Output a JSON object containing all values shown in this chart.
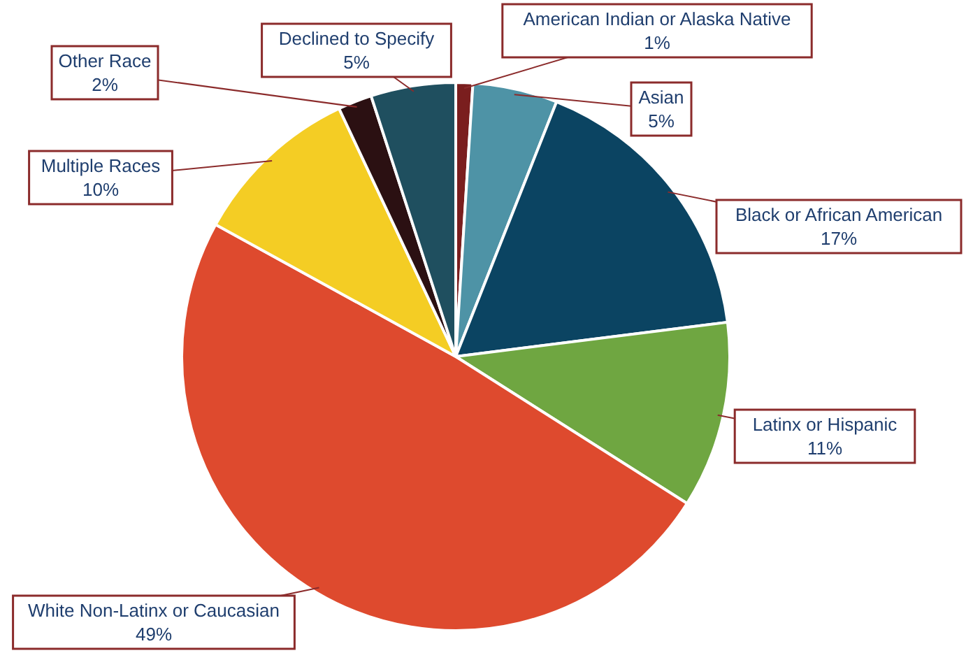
{
  "chart_data": {
    "type": "pie",
    "categories": [
      "American Indian or Alaska Native",
      "Asian",
      "Black or African American",
      "Latinx or Hispanic",
      "White Non-Latinx or Caucasian",
      "Multiple Races",
      "Other Race",
      "Declined to Specify"
    ],
    "values": [
      1,
      5,
      17,
      11,
      49,
      10,
      2,
      5
    ],
    "colors": [
      "#7a1e1e",
      "#4e93a6",
      "#0b4462",
      "#6fa641",
      "#de4a2e",
      "#f4cd24",
      "#2b1012",
      "#1f4f5f"
    ],
    "value_labels": [
      "1%",
      "5%",
      "17%",
      "11%",
      "49%",
      "10%",
      "2%",
      "5%"
    ],
    "legend": false
  }
}
